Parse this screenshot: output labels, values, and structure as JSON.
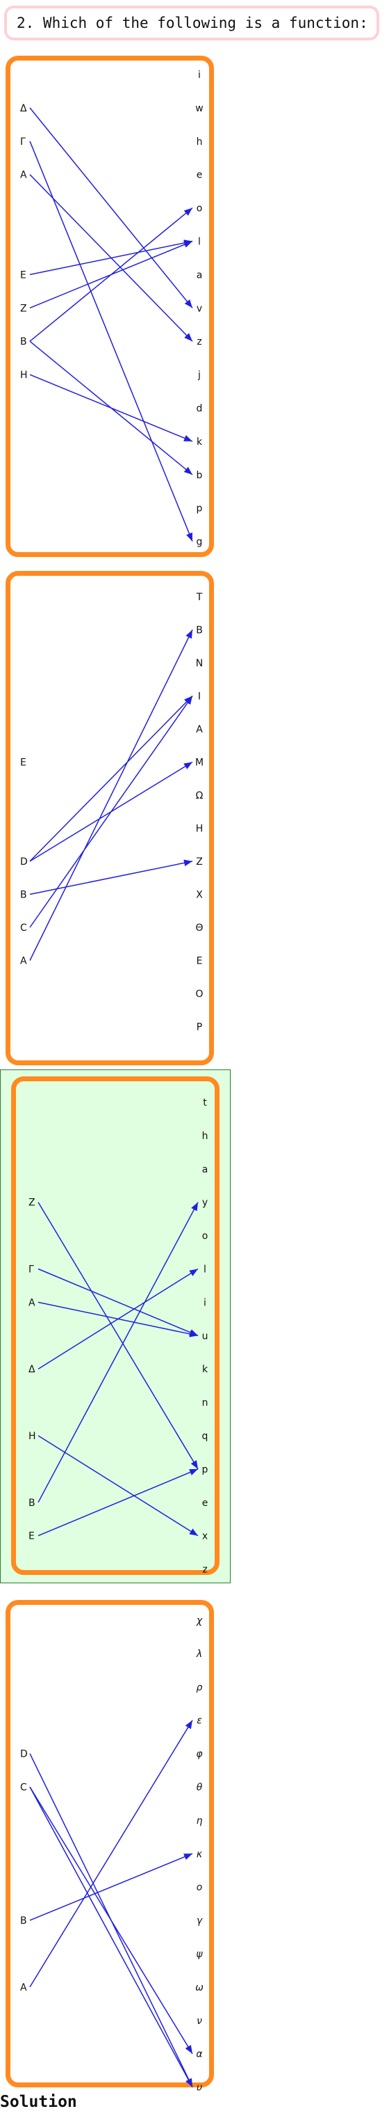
{
  "question": {
    "text": "2. Which of the following is a function:"
  },
  "panels": [
    {
      "left": [
        "Δ",
        "Γ",
        "A",
        "E",
        "Z",
        "B",
        "H"
      ],
      "right": [
        "i",
        "w",
        "h",
        "e",
        "o",
        "l",
        "a",
        "v",
        "z",
        "j",
        "d",
        "k",
        "b",
        "p",
        "g"
      ],
      "arrows": [
        [
          "Δ",
          "v"
        ],
        [
          "Γ",
          "g"
        ],
        [
          "A",
          "z"
        ],
        [
          "E",
          "l"
        ],
        [
          "Z",
          "l"
        ],
        [
          "B",
          "o"
        ],
        [
          "B",
          "b"
        ],
        [
          "H",
          "k"
        ]
      ]
    },
    {
      "left": [
        "E",
        "D",
        "B",
        "C",
        "A"
      ],
      "right": [
        "T",
        "B",
        "N",
        "I",
        "A",
        "M",
        "Ω",
        "H",
        "Z",
        "X",
        "Θ",
        "E",
        "O",
        "P"
      ],
      "arrows": [
        [
          "D",
          "I"
        ],
        [
          "D",
          "M"
        ],
        [
          "B",
          "Z"
        ],
        [
          "C",
          "I"
        ],
        [
          "A",
          "B"
        ]
      ]
    },
    {
      "left": [
        "Z",
        "Γ",
        "A",
        "Δ",
        "H",
        "B",
        "E"
      ],
      "right": [
        "t",
        "h",
        "a",
        "y",
        "o",
        "l",
        "i",
        "u",
        "k",
        "n",
        "q",
        "p",
        "e",
        "x",
        "z"
      ],
      "arrows": [
        [
          "Z",
          "p"
        ],
        [
          "Γ",
          "u"
        ],
        [
          "A",
          "u"
        ],
        [
          "Δ",
          "l"
        ],
        [
          "H",
          "x"
        ],
        [
          "B",
          "y"
        ],
        [
          "E",
          "p"
        ]
      ]
    },
    {
      "left": [
        "D",
        "C",
        "B",
        "A"
      ],
      "right": [
        "χ",
        "λ",
        "ρ",
        "ε",
        "φ",
        "θ",
        "η",
        "κ",
        "ο",
        "γ",
        "ψ",
        "ω",
        "ν",
        "α",
        "υ"
      ],
      "arrows": [
        [
          "D",
          "υ"
        ],
        [
          "C",
          "α"
        ],
        [
          "C",
          "υ"
        ],
        [
          "B",
          "κ"
        ],
        [
          "A",
          "ε"
        ]
      ]
    }
  ],
  "colors": {
    "arrow": "#2020e0",
    "panel_border": "#ff8a1f",
    "selected_bg": "#e0ffe0"
  },
  "solution": {
    "label": "Solution"
  }
}
